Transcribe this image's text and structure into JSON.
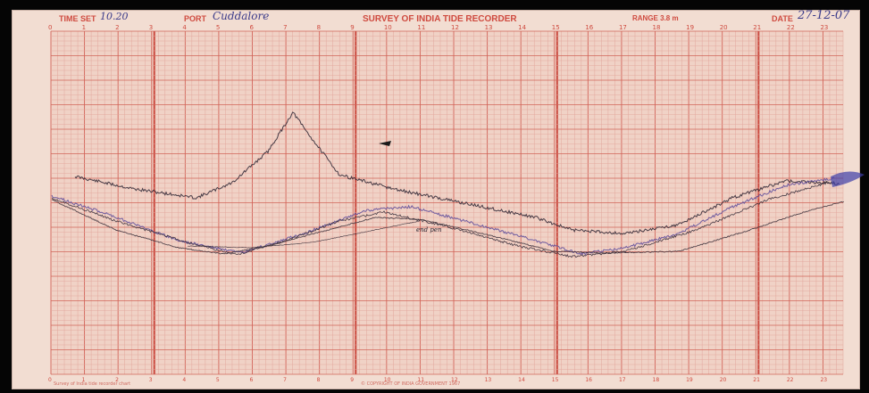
{
  "header": {
    "time_set_label": "TIME SET",
    "time_set_value": "10.20",
    "port_label": "PORT",
    "port_value": "Cuddalore",
    "title": "SURVEY OF INDIA TIDE RECORDER",
    "range_label": "RANGE 3.8 m",
    "date_label": "DATE",
    "date_value": "27-12-07"
  },
  "hour_ticks": [
    "0",
    "1",
    "2",
    "3",
    "4",
    "5",
    "6",
    "7",
    "8",
    "9",
    "10",
    "11",
    "12",
    "13",
    "14",
    "15",
    "16",
    "17",
    "18",
    "19",
    "20",
    "21",
    "22",
    "23"
  ],
  "annotation": "end pen",
  "footer_left": "Survey of India tide recorder chart",
  "footer_center": "© COPYRIGHT OF INDIA GOVERNMENT 1967",
  "colors": {
    "paper": "#f2ddd2",
    "grid_minor": "#e2a69c",
    "grid_major": "#cc5247",
    "trace_dark": "#2a2230",
    "trace_purple": "#5b4a9a",
    "trace_blue": "#3f3fa8"
  }
}
